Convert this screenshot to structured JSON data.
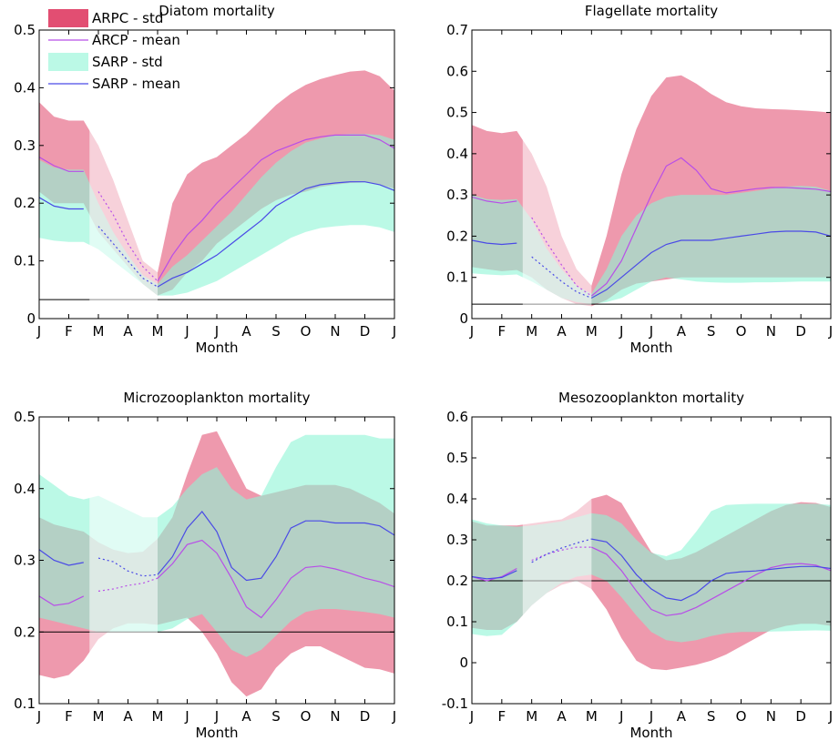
{
  "legend": {
    "items": [
      {
        "label": "ARPC - std",
        "kind": "patch",
        "color": "#e0456a"
      },
      {
        "label": "ARCP - mean",
        "kind": "line",
        "color": "#b84ee8"
      },
      {
        "label": "SARP - std",
        "kind": "patch",
        "color": "#8ef5d6"
      },
      {
        "label": "SARP - mean",
        "kind": "line",
        "color": "#4a4ae6"
      }
    ]
  },
  "colors": {
    "arcp_band": "#e0456a",
    "arcp_mean": "#b84ee8",
    "sarp_band": "#8ef5d6",
    "sarp_mean": "#4a4ae6",
    "reference_line": "#000000"
  },
  "chart_data": [
    {
      "type": "area",
      "title": "Diatom mortality",
      "xlabel": "Month",
      "ylabel": "",
      "xticks": [
        "J",
        "F",
        "M",
        "A",
        "M",
        "J",
        "J",
        "A",
        "S",
        "O",
        "N",
        "D",
        "J"
      ],
      "ylim": [
        0,
        0.5
      ],
      "yticks": [
        "0",
        "0.1",
        "0.2",
        "0.3",
        "0.4",
        "0.5"
      ],
      "ytick_values": [
        0,
        0.1,
        0.2,
        0.3,
        0.4,
        0.5
      ],
      "shaded_period": [
        1.7,
        4.0
      ],
      "reference_line": 0.033,
      "x": [
        0,
        0.5,
        1,
        1.5,
        2,
        2.5,
        3,
        3.5,
        4,
        4.5,
        5,
        5.5,
        6,
        6.5,
        7,
        7.5,
        8,
        8.5,
        9,
        9.5,
        10,
        10.5,
        11,
        11.5,
        12
      ],
      "series": [
        {
          "name": "ARCP - mean",
          "values": [
            0.28,
            0.265,
            0.255,
            0.255,
            0.22,
            0.18,
            0.13,
            0.09,
            0.065,
            0.11,
            0.145,
            0.17,
            0.2,
            0.225,
            0.25,
            0.275,
            0.29,
            0.3,
            0.31,
            0.315,
            0.318,
            0.318,
            0.318,
            0.31,
            0.295
          ],
          "upper": [
            0.375,
            0.35,
            0.343,
            0.343,
            0.3,
            0.24,
            0.17,
            0.1,
            0.08,
            0.2,
            0.25,
            0.27,
            0.28,
            0.3,
            0.32,
            0.345,
            0.37,
            0.39,
            0.405,
            0.415,
            0.422,
            0.428,
            0.43,
            0.42,
            0.395
          ],
          "lower": [
            0.22,
            0.2,
            0.2,
            0.2,
            0.15,
            0.12,
            0.09,
            0.06,
            0.04,
            0.05,
            0.08,
            0.1,
            0.13,
            0.15,
            0.17,
            0.19,
            0.205,
            0.215,
            0.22,
            0.228,
            0.232,
            0.235,
            0.236,
            0.232,
            0.225
          ]
        },
        {
          "name": "SARP - mean",
          "values": [
            0.21,
            0.195,
            0.19,
            0.19,
            0.16,
            0.13,
            0.1,
            0.07,
            0.055,
            0.07,
            0.08,
            0.095,
            0.11,
            0.13,
            0.15,
            0.17,
            0.195,
            0.21,
            0.225,
            0.232,
            0.235,
            0.237,
            0.237,
            0.232,
            0.222
          ],
          "upper": [
            0.275,
            0.262,
            0.258,
            0.258,
            0.2,
            0.15,
            0.11,
            0.075,
            0.06,
            0.09,
            0.11,
            0.135,
            0.16,
            0.185,
            0.215,
            0.245,
            0.27,
            0.29,
            0.305,
            0.312,
            0.318,
            0.32,
            0.32,
            0.318,
            0.31
          ],
          "lower": [
            0.14,
            0.135,
            0.133,
            0.133,
            0.12,
            0.1,
            0.08,
            0.06,
            0.04,
            0.04,
            0.045,
            0.055,
            0.065,
            0.08,
            0.095,
            0.11,
            0.125,
            0.14,
            0.15,
            0.157,
            0.16,
            0.162,
            0.162,
            0.158,
            0.15
          ]
        }
      ]
    },
    {
      "type": "area",
      "title": "Flagellate mortality",
      "xlabel": "Month",
      "ylabel": "",
      "xticks": [
        "J",
        "F",
        "M",
        "A",
        "M",
        "J",
        "J",
        "A",
        "S",
        "O",
        "N",
        "D",
        "J"
      ],
      "ylim": [
        0,
        0.7
      ],
      "yticks": [
        "0",
        "0.1",
        "0.2",
        "0.3",
        "0.4",
        "0.5",
        "0.6",
        "0.7"
      ],
      "ytick_values": [
        0,
        0.1,
        0.2,
        0.3,
        0.4,
        0.5,
        0.6,
        0.7
      ],
      "shaded_period": [
        1.7,
        4.0
      ],
      "reference_line": 0.035,
      "x": [
        0,
        0.5,
        1,
        1.5,
        2,
        2.5,
        3,
        3.5,
        4,
        4.5,
        5,
        5.5,
        6,
        6.5,
        7,
        7.5,
        8,
        8.5,
        9,
        9.5,
        10,
        10.5,
        11,
        11.5,
        12
      ],
      "series": [
        {
          "name": "ARCP - mean",
          "values": [
            0.295,
            0.285,
            0.28,
            0.285,
            0.245,
            0.185,
            0.13,
            0.08,
            0.055,
            0.085,
            0.14,
            0.22,
            0.3,
            0.37,
            0.39,
            0.36,
            0.315,
            0.305,
            0.31,
            0.315,
            0.318,
            0.318,
            0.316,
            0.314,
            0.308
          ],
          "upper": [
            0.47,
            0.455,
            0.45,
            0.455,
            0.4,
            0.32,
            0.2,
            0.12,
            0.08,
            0.2,
            0.35,
            0.46,
            0.54,
            0.585,
            0.59,
            0.57,
            0.545,
            0.525,
            0.515,
            0.51,
            0.508,
            0.507,
            0.505,
            0.503,
            0.5
          ],
          "lower": [
            0.125,
            0.12,
            0.115,
            0.118,
            0.1,
            0.07,
            0.05,
            0.035,
            0.03,
            0.045,
            0.07,
            0.085,
            0.09,
            0.095,
            0.1,
            0.1,
            0.1,
            0.1,
            0.1,
            0.1,
            0.1,
            0.1,
            0.1,
            0.1,
            0.1
          ]
        },
        {
          "name": "SARP - mean",
          "values": [
            0.19,
            0.183,
            0.18,
            0.183,
            0.15,
            0.12,
            0.09,
            0.065,
            0.05,
            0.07,
            0.1,
            0.13,
            0.16,
            0.18,
            0.19,
            0.19,
            0.19,
            0.195,
            0.2,
            0.205,
            0.21,
            0.212,
            0.212,
            0.21,
            0.2
          ],
          "upper": [
            0.3,
            0.29,
            0.288,
            0.29,
            0.24,
            0.17,
            0.12,
            0.08,
            0.06,
            0.12,
            0.2,
            0.25,
            0.28,
            0.295,
            0.3,
            0.3,
            0.3,
            0.3,
            0.305,
            0.31,
            0.315,
            0.32,
            0.322,
            0.32,
            0.31
          ],
          "lower": [
            0.11,
            0.107,
            0.105,
            0.107,
            0.09,
            0.07,
            0.05,
            0.04,
            0.035,
            0.04,
            0.05,
            0.07,
            0.09,
            0.1,
            0.095,
            0.09,
            0.088,
            0.087,
            0.087,
            0.088,
            0.088,
            0.089,
            0.09,
            0.09,
            0.09
          ]
        }
      ]
    },
    {
      "type": "area",
      "title": "Microzooplankton mortality",
      "xlabel": "Month",
      "ylabel": "",
      "xticks": [
        "J",
        "F",
        "M",
        "A",
        "M",
        "J",
        "J",
        "A",
        "S",
        "O",
        "N",
        "D",
        "J"
      ],
      "ylim": [
        0.1,
        0.5
      ],
      "yticks": [
        "0.1",
        "0.2",
        "0.3",
        "0.4",
        "0.5"
      ],
      "ytick_values": [
        0.1,
        0.2,
        0.3,
        0.4,
        0.5
      ],
      "shaded_period": [
        1.7,
        4.0
      ],
      "reference_line": 0.2,
      "x": [
        0,
        0.5,
        1,
        1.5,
        2,
        2.5,
        3,
        3.5,
        4,
        4.5,
        5,
        5.5,
        6,
        6.5,
        7,
        7.5,
        8,
        8.5,
        9,
        9.5,
        10,
        10.5,
        11,
        11.5,
        12
      ],
      "series": [
        {
          "name": "ARCP - mean",
          "values": [
            0.25,
            0.237,
            0.24,
            0.25,
            0.257,
            0.26,
            0.265,
            0.268,
            0.275,
            0.295,
            0.322,
            0.328,
            0.31,
            0.275,
            0.235,
            0.22,
            0.245,
            0.275,
            0.29,
            0.292,
            0.288,
            0.282,
            0.275,
            0.27,
            0.263
          ],
          "upper": [
            0.36,
            0.35,
            0.345,
            0.34,
            0.325,
            0.315,
            0.31,
            0.312,
            0.33,
            0.36,
            0.42,
            0.475,
            0.48,
            0.44,
            0.4,
            0.39,
            0.395,
            0.4,
            0.405,
            0.405,
            0.405,
            0.4,
            0.39,
            0.38,
            0.365
          ],
          "lower": [
            0.14,
            0.135,
            0.14,
            0.16,
            0.19,
            0.205,
            0.212,
            0.212,
            0.21,
            0.215,
            0.22,
            0.2,
            0.17,
            0.13,
            0.11,
            0.12,
            0.15,
            0.17,
            0.18,
            0.18,
            0.17,
            0.16,
            0.15,
            0.148,
            0.142
          ]
        },
        {
          "name": "SARP - mean",
          "values": [
            0.315,
            0.3,
            0.293,
            0.297,
            0.303,
            0.298,
            0.285,
            0.278,
            0.28,
            0.305,
            0.345,
            0.368,
            0.34,
            0.29,
            0.272,
            0.275,
            0.305,
            0.345,
            0.355,
            0.355,
            0.352,
            0.352,
            0.352,
            0.348,
            0.335
          ],
          "upper": [
            0.42,
            0.405,
            0.39,
            0.385,
            0.39,
            0.38,
            0.37,
            0.36,
            0.36,
            0.375,
            0.4,
            0.42,
            0.43,
            0.4,
            0.385,
            0.39,
            0.43,
            0.465,
            0.475,
            0.475,
            0.475,
            0.475,
            0.475,
            0.47,
            0.47
          ],
          "lower": [
            0.22,
            0.215,
            0.21,
            0.205,
            0.2,
            0.2,
            0.2,
            0.2,
            0.2,
            0.205,
            0.218,
            0.225,
            0.2,
            0.175,
            0.165,
            0.175,
            0.195,
            0.215,
            0.228,
            0.232,
            0.232,
            0.23,
            0.228,
            0.225,
            0.22
          ]
        }
      ]
    },
    {
      "type": "area",
      "title": "Mesozooplankton mortality",
      "xlabel": "Month",
      "ylabel": "",
      "xticks": [
        "J",
        "F",
        "M",
        "A",
        "M",
        "J",
        "J",
        "A",
        "S",
        "O",
        "N",
        "D",
        "J"
      ],
      "ylim": [
        -0.1,
        0.6
      ],
      "yticks": [
        "-0.1",
        "0",
        "0.1",
        "0.2",
        "0.3",
        "0.4",
        "0.5",
        "0.6"
      ],
      "ytick_values": [
        -0.1,
        0,
        0.1,
        0.2,
        0.3,
        0.4,
        0.5,
        0.6
      ],
      "shaded_period": [
        1.7,
        4.0
      ],
      "reference_line": 0.2,
      "x": [
        0,
        0.5,
        1,
        1.5,
        2,
        2.5,
        3,
        3.5,
        4,
        4.5,
        5,
        5.5,
        6,
        6.5,
        7,
        7.5,
        8,
        8.5,
        9,
        9.5,
        10,
        10.5,
        11,
        11.5,
        12
      ],
      "series": [
        {
          "name": "ARCP - mean",
          "values": [
            0.21,
            0.2,
            0.21,
            0.23,
            0.25,
            0.265,
            0.275,
            0.282,
            0.282,
            0.265,
            0.225,
            0.175,
            0.13,
            0.115,
            0.12,
            0.135,
            0.155,
            0.175,
            0.195,
            0.215,
            0.232,
            0.24,
            0.242,
            0.238,
            0.225
          ],
          "upper": [
            0.345,
            0.335,
            0.335,
            0.335,
            0.34,
            0.345,
            0.35,
            0.37,
            0.4,
            0.41,
            0.39,
            0.33,
            0.27,
            0.25,
            0.255,
            0.27,
            0.29,
            0.31,
            0.33,
            0.35,
            0.37,
            0.385,
            0.392,
            0.39,
            0.38
          ],
          "lower": [
            0.085,
            0.08,
            0.08,
            0.1,
            0.14,
            0.17,
            0.19,
            0.2,
            0.18,
            0.13,
            0.06,
            0.005,
            -0.015,
            -0.018,
            -0.012,
            -0.005,
            0.005,
            0.02,
            0.04,
            0.06,
            0.08,
            0.09,
            0.095,
            0.095,
            0.09
          ]
        },
        {
          "name": "SARP - mean",
          "values": [
            0.21,
            0.205,
            0.208,
            0.225,
            0.245,
            0.265,
            0.28,
            0.292,
            0.302,
            0.295,
            0.262,
            0.215,
            0.18,
            0.158,
            0.152,
            0.17,
            0.2,
            0.218,
            0.222,
            0.224,
            0.228,
            0.232,
            0.235,
            0.235,
            0.23
          ],
          "upper": [
            0.35,
            0.34,
            0.335,
            0.332,
            0.335,
            0.34,
            0.345,
            0.355,
            0.365,
            0.36,
            0.34,
            0.3,
            0.268,
            0.26,
            0.275,
            0.32,
            0.37,
            0.385,
            0.387,
            0.388,
            0.388,
            0.388,
            0.388,
            0.388,
            0.385
          ],
          "lower": [
            0.07,
            0.065,
            0.068,
            0.1,
            0.14,
            0.17,
            0.195,
            0.21,
            0.215,
            0.2,
            0.16,
            0.115,
            0.075,
            0.055,
            0.05,
            0.055,
            0.065,
            0.072,
            0.075,
            0.075,
            0.076,
            0.077,
            0.078,
            0.079,
            0.078
          ]
        }
      ]
    }
  ]
}
